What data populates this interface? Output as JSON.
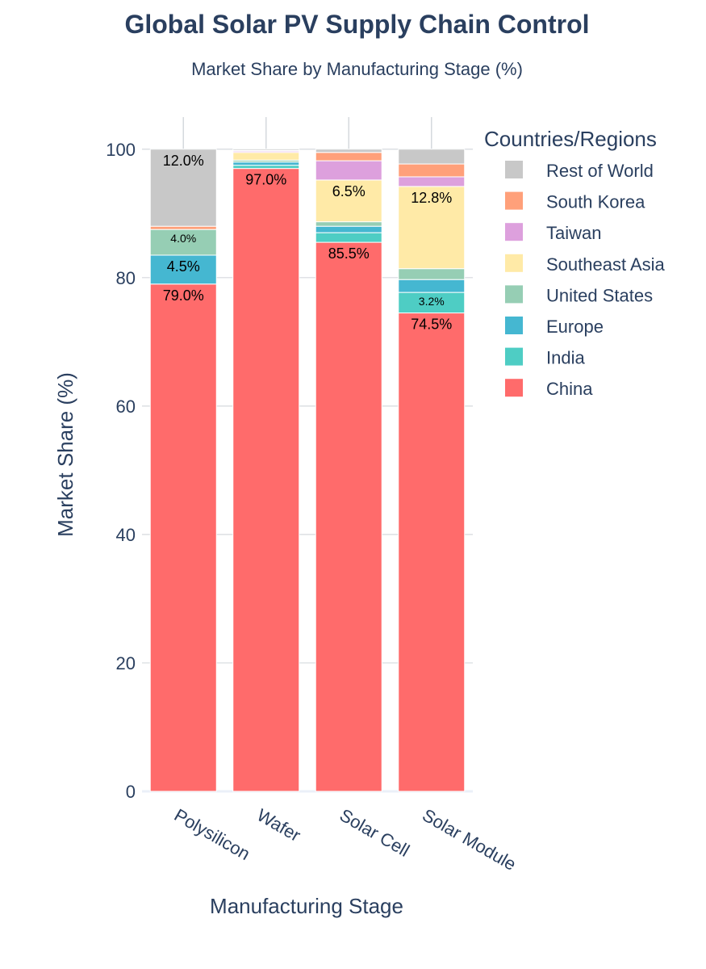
{
  "chart_data": {
    "type": "bar",
    "stacked": true,
    "title": "Global Solar PV Supply Chain Control",
    "subtitle": "Market Share by Manufacturing Stage (%)",
    "xlabel": "Manufacturing Stage",
    "ylabel": "Market Share (%)",
    "ylim": [
      0,
      105
    ],
    "yticks": [
      0,
      20,
      40,
      60,
      80,
      100
    ],
    "grid": true,
    "legend_title": "Countries/Regions",
    "legend_position": "top-right",
    "categories": [
      "Polysilicon",
      "Wafer",
      "Solar Cell",
      "Solar Module"
    ],
    "series": [
      {
        "name": "China",
        "color": "#ff6b6b",
        "values": [
          79.0,
          97.0,
          85.5,
          74.5
        ],
        "labels": [
          "79.0%",
          "97.0%",
          "85.5%",
          "74.5%"
        ]
      },
      {
        "name": "India",
        "color": "#4ecdc4",
        "values": [
          0.0,
          0.5,
          1.5,
          3.2
        ],
        "labels": [
          "",
          "",
          "",
          "3.2%"
        ]
      },
      {
        "name": "Europe",
        "color": "#45b7d1",
        "values": [
          4.5,
          0.5,
          1.0,
          2.0
        ],
        "labels": [
          "4.5%",
          "",
          "",
          ""
        ]
      },
      {
        "name": "United States",
        "color": "#96ceb4",
        "values": [
          4.0,
          0.3,
          0.7,
          1.7
        ],
        "labels": [
          "4.0%",
          "",
          "",
          ""
        ]
      },
      {
        "name": "Southeast Asia",
        "color": "#ffeaa7",
        "values": [
          0.0,
          1.2,
          6.5,
          12.8
        ],
        "labels": [
          "",
          "",
          "6.5%",
          "12.8%"
        ]
      },
      {
        "name": "Taiwan",
        "color": "#dda0dd",
        "values": [
          0.0,
          0.2,
          3.0,
          1.5
        ],
        "labels": [
          "",
          "",
          "",
          ""
        ]
      },
      {
        "name": "South Korea",
        "color": "#ffa07a",
        "values": [
          0.5,
          0.1,
          1.3,
          2.0
        ],
        "labels": [
          "",
          "",
          "",
          ""
        ]
      },
      {
        "name": "Rest of World",
        "color": "#c8c8c8",
        "values": [
          12.0,
          0.2,
          0.5,
          2.3
        ],
        "labels": [
          "12.0%",
          "",
          "",
          ""
        ]
      }
    ]
  }
}
